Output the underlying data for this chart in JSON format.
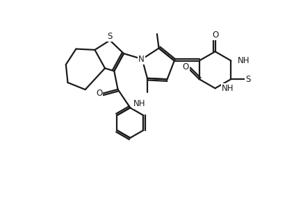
{
  "background_color": "#ffffff",
  "line_color": "#1a1a1a",
  "line_width": 1.6,
  "font_size": 8.5,
  "figsize": [
    4.23,
    2.97
  ],
  "dpi": 100,
  "xlim": [
    -1.5,
    12.5
  ],
  "ylim": [
    -5.5,
    5.5
  ]
}
